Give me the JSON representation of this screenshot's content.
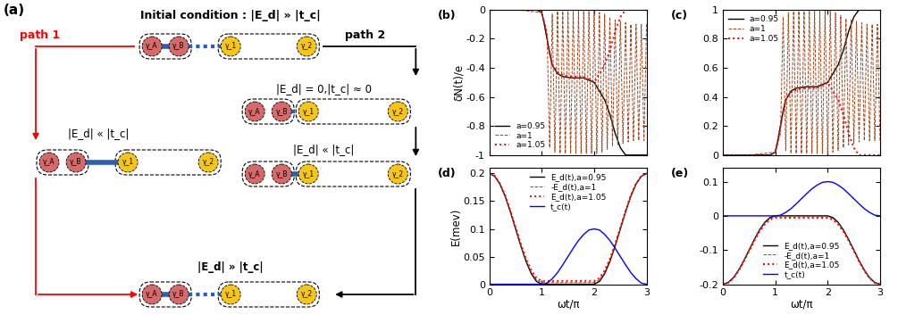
{
  "diagram": {
    "label": "(a)",
    "initial": "Initial condition : |E_d| » |t_c|",
    "path_1": {
      "label": "path 1",
      "steps": [
        "|E_d| « |t_c|"
      ]
    },
    "path_2": {
      "label": "path 2",
      "steps": [
        "|E_d| = 0,|t_c| ≈ 0",
        "|E_d| « |t_c|"
      ]
    },
    "final": "|E_d| » |t_c|",
    "nodes": [
      "γ_A",
      "γ_B",
      "γ_1",
      "γ_2"
    ]
  },
  "chart_data": [
    {
      "type": "line",
      "title": "(b)",
      "ylabel": "δN(t)/e",
      "xlim": [
        0,
        3
      ],
      "xticks": [
        0,
        1,
        2,
        3
      ],
      "ylim": [
        -1,
        0
      ],
      "yticks": [
        -1,
        -0.8,
        -0.6,
        -0.4,
        -0.2,
        0
      ],
      "tick_labels": "y",
      "legend": "lower left",
      "series": [
        {
          "name": "a=0.95",
          "color": "#000000",
          "line_style": "solid",
          "x": [
            0,
            0.5,
            0.9,
            1.0,
            1.05,
            1.1,
            1.15,
            1.2,
            1.3,
            1.4,
            1.6,
            1.8,
            2.0,
            2.2,
            2.3,
            2.4,
            2.5,
            2.6,
            2.8,
            3.0
          ],
          "values": [
            0,
            0,
            0,
            -0.02,
            -0.1,
            -0.2,
            -0.3,
            -0.38,
            -0.44,
            -0.46,
            -0.47,
            -0.47,
            -0.5,
            -0.62,
            -0.72,
            -0.85,
            -0.95,
            -1.0,
            -1.0,
            -1.0
          ]
        },
        {
          "name": "a=1",
          "color": "#a0461e",
          "line_style": "dashed",
          "x": [
            0,
            0.5,
            1.0,
            1.1,
            1.15,
            1.2,
            1.25,
            1.3,
            1.35,
            1.4,
            1.45,
            1.5,
            1.55,
            1.6,
            1.65,
            1.7,
            1.75,
            1.8,
            1.85,
            1.9,
            1.95,
            2.0,
            2.05,
            2.1,
            2.15,
            2.2,
            2.25,
            2.3,
            2.35,
            2.4,
            2.45,
            2.5,
            2.55,
            2.6,
            2.65,
            2.7,
            2.75,
            2.8,
            2.85,
            2.9,
            2.95,
            3.0
          ],
          "values": [
            0,
            0,
            -0.02,
            -0.15,
            -0.95,
            -0.03,
            -0.98,
            -0.01,
            -0.99,
            -0.01,
            -0.99,
            -0.01,
            -0.99,
            -0.01,
            -0.99,
            -0.01,
            -0.99,
            -0.01,
            -0.99,
            -0.01,
            -0.99,
            -0.01,
            -0.99,
            -0.02,
            -0.98,
            -0.03,
            -0.96,
            -0.05,
            -0.94,
            -0.07,
            -0.93,
            -0.08,
            -0.92,
            -0.09,
            -0.91,
            -0.1,
            -0.9,
            -0.1,
            -0.9,
            -0.1,
            -0.9,
            -0.1
          ]
        },
        {
          "name": "a=1.05",
          "color": "#ff0000",
          "line_style": "dotted",
          "x": [
            0,
            0.5,
            0.9,
            1.0,
            1.05,
            1.1,
            1.15,
            1.2,
            1.3,
            1.4,
            1.6,
            1.8,
            2.0,
            2.2,
            2.3,
            2.4,
            2.5,
            2.6,
            2.8,
            3.0
          ],
          "values": [
            0,
            0,
            0,
            -0.02,
            -0.1,
            -0.2,
            -0.3,
            -0.38,
            -0.43,
            -0.45,
            -0.46,
            -0.46,
            -0.5,
            -0.38,
            -0.28,
            -0.15,
            -0.05,
            0,
            0,
            0
          ]
        }
      ]
    },
    {
      "type": "line",
      "title": "(c)",
      "xlim": [
        0,
        3
      ],
      "xticks": [
        0,
        1,
        2,
        3
      ],
      "ylim": [
        0,
        1
      ],
      "yticks": [
        0,
        0.2,
        0.4,
        0.6,
        0.8,
        1
      ],
      "tick_labels": "y",
      "legend": "upper left",
      "series": [
        {
          "name": "a=0.95",
          "color": "#000000",
          "line_style": "solid",
          "x": [
            0,
            0.5,
            0.9,
            1.0,
            1.05,
            1.1,
            1.15,
            1.2,
            1.3,
            1.4,
            1.6,
            1.8,
            2.0,
            2.2,
            2.3,
            2.4,
            2.5,
            2.6,
            2.8,
            3.0
          ],
          "values": [
            0,
            0,
            0,
            0.02,
            0.1,
            0.2,
            0.3,
            0.38,
            0.44,
            0.46,
            0.47,
            0.47,
            0.5,
            0.62,
            0.72,
            0.85,
            0.95,
            1.0,
            1.0,
            1.0
          ]
        },
        {
          "name": "a=1",
          "color": "#a0461e",
          "line_style": "dashed",
          "x": [
            0,
            0.5,
            1.0,
            1.1,
            1.15,
            1.2,
            1.25,
            1.3,
            1.35,
            1.4,
            1.45,
            1.5,
            1.55,
            1.6,
            1.65,
            1.7,
            1.75,
            1.8,
            1.85,
            1.9,
            1.95,
            2.0,
            2.05,
            2.1,
            2.15,
            2.2,
            2.25,
            2.3,
            2.35,
            2.4,
            2.45,
            2.5,
            2.55,
            2.6,
            2.65,
            2.7,
            2.75,
            2.8,
            2.85,
            2.9,
            2.95,
            3.0
          ],
          "values": [
            0,
            0,
            0.02,
            0.15,
            0.95,
            0.03,
            0.98,
            0.01,
            0.99,
            0.01,
            0.99,
            0.01,
            0.99,
            0.01,
            0.99,
            0.01,
            0.99,
            0.01,
            0.99,
            0.01,
            0.99,
            0.01,
            0.99,
            0.02,
            0.98,
            0.03,
            0.96,
            0.05,
            0.94,
            0.07,
            0.93,
            0.08,
            0.92,
            0.09,
            0.91,
            0.1,
            0.9,
            0.1,
            0.9,
            0.1,
            0.9,
            0.1
          ]
        },
        {
          "name": "a=1.05",
          "color": "#ff0000",
          "line_style": "dotted",
          "x": [
            0,
            0.5,
            0.9,
            1.0,
            1.05,
            1.1,
            1.15,
            1.2,
            1.3,
            1.4,
            1.6,
            1.8,
            2.0,
            2.2,
            2.3,
            2.4,
            2.5,
            2.6,
            2.8,
            3.0
          ],
          "values": [
            0,
            0,
            0,
            0.02,
            0.1,
            0.2,
            0.3,
            0.38,
            0.43,
            0.45,
            0.46,
            0.46,
            0.5,
            0.38,
            0.28,
            0.15,
            0.05,
            0,
            0,
            0
          ]
        }
      ]
    },
    {
      "type": "line",
      "title": "(d)",
      "xlabel": "ωt/π",
      "ylabel": "E(mev)",
      "xlim": [
        0,
        3
      ],
      "xticks": [
        0,
        1,
        2,
        3
      ],
      "ylim": [
        0,
        0.21
      ],
      "yticks": [
        0,
        0.05,
        0.1,
        0.15,
        0.2
      ],
      "legend": "upper center",
      "x": [
        0,
        0.1,
        0.2,
        0.3,
        0.4,
        0.5,
        0.6,
        0.7,
        0.8,
        0.9,
        1.0,
        1.1,
        1.2,
        1.3,
        1.4,
        1.5,
        1.6,
        1.7,
        1.8,
        1.9,
        2.0,
        2.1,
        2.2,
        2.3,
        2.4,
        2.5,
        2.6,
        2.7,
        2.8,
        2.9,
        3.0
      ],
      "series": [
        {
          "name": "E_d(t),a=0.95",
          "color": "#000000",
          "line_style": "solid",
          "values": [
            0.2,
            0.195,
            0.181,
            0.159,
            0.131,
            0.1,
            0.069,
            0.041,
            0.019,
            0.005,
            0,
            0,
            0,
            0,
            0,
            0,
            0,
            0,
            0,
            0,
            0,
            0.005,
            0.019,
            0.041,
            0.069,
            0.1,
            0.131,
            0.159,
            0.181,
            0.195,
            0.2
          ]
        },
        {
          "name": "-E_d(t),a=1",
          "color": "#a0461e",
          "line_style": "dashed",
          "values": [
            0.2,
            0.195,
            0.181,
            0.159,
            0.131,
            0.101,
            0.07,
            0.043,
            0.021,
            0.008,
            0.003,
            0.003,
            0.003,
            0.003,
            0.003,
            0.003,
            0.003,
            0.003,
            0.003,
            0.003,
            0.003,
            0.008,
            0.021,
            0.043,
            0.07,
            0.101,
            0.131,
            0.159,
            0.181,
            0.195,
            0.2
          ]
        },
        {
          "name": "E_d(t),a=1.05",
          "color": "#ff0000",
          "line_style": "dotted",
          "values": [
            0.2,
            0.196,
            0.182,
            0.161,
            0.133,
            0.103,
            0.073,
            0.046,
            0.025,
            0.011,
            0.006,
            0.006,
            0.006,
            0.006,
            0.006,
            0.006,
            0.006,
            0.006,
            0.006,
            0.006,
            0.006,
            0.011,
            0.025,
            0.046,
            0.073,
            0.103,
            0.133,
            0.161,
            0.182,
            0.196,
            0.2
          ]
        },
        {
          "name": "t_c(t)",
          "color": "#0000ff",
          "line_style": "solid",
          "values": [
            0,
            0,
            0,
            0,
            0,
            0,
            0,
            0,
            0,
            0,
            0,
            0.002,
            0.01,
            0.021,
            0.035,
            0.05,
            0.065,
            0.079,
            0.09,
            0.098,
            0.1,
            0.098,
            0.09,
            0.079,
            0.065,
            0.05,
            0.035,
            0.021,
            0.01,
            0.002,
            0
          ]
        }
      ]
    },
    {
      "type": "line",
      "title": "(e)",
      "xlabel": "ωt/π",
      "xlim": [
        0,
        3
      ],
      "xticks": [
        0,
        1,
        2,
        3
      ],
      "ylim": [
        -0.2,
        0.14
      ],
      "yticks": [
        -0.2,
        -0.1,
        0,
        0.1
      ],
      "legend": "lower center",
      "x": [
        0,
        0.1,
        0.2,
        0.3,
        0.4,
        0.5,
        0.6,
        0.7,
        0.8,
        0.9,
        1.0,
        1.1,
        1.2,
        1.3,
        1.4,
        1.5,
        1.6,
        1.7,
        1.8,
        1.9,
        2.0,
        2.1,
        2.2,
        2.3,
        2.4,
        2.5,
        2.6,
        2.7,
        2.8,
        2.9,
        3.0
      ],
      "series": [
        {
          "name": "E_d(t),a=0.95",
          "color": "#000000",
          "line_style": "solid",
          "values": [
            -0.2,
            -0.195,
            -0.181,
            -0.159,
            -0.131,
            -0.1,
            -0.069,
            -0.041,
            -0.019,
            -0.005,
            0,
            0,
            0,
            0,
            0,
            0,
            0,
            0,
            0,
            0,
            0,
            -0.005,
            -0.019,
            -0.041,
            -0.069,
            -0.1,
            -0.131,
            -0.159,
            -0.181,
            -0.195,
            -0.2
          ]
        },
        {
          "name": "-E_d(t),a=1",
          "color": "#a0461e",
          "line_style": "dashed",
          "values": [
            -0.2,
            -0.195,
            -0.181,
            -0.159,
            -0.131,
            -0.101,
            -0.07,
            -0.043,
            -0.021,
            -0.008,
            -0.003,
            -0.003,
            -0.003,
            -0.003,
            -0.003,
            -0.003,
            -0.003,
            -0.003,
            -0.003,
            -0.003,
            -0.003,
            -0.008,
            -0.021,
            -0.043,
            -0.07,
            -0.101,
            -0.131,
            -0.159,
            -0.181,
            -0.195,
            -0.2
          ]
        },
        {
          "name": "E_d(t),a=1.05",
          "color": "#ff0000",
          "line_style": "dotted",
          "values": [
            -0.2,
            -0.196,
            -0.182,
            -0.161,
            -0.133,
            -0.103,
            -0.073,
            -0.046,
            -0.025,
            -0.011,
            -0.006,
            -0.006,
            -0.006,
            -0.006,
            -0.006,
            -0.006,
            -0.006,
            -0.006,
            -0.006,
            -0.006,
            -0.006,
            -0.011,
            -0.025,
            -0.046,
            -0.073,
            -0.103,
            -0.133,
            -0.161,
            -0.182,
            -0.196,
            -0.2
          ]
        },
        {
          "name": "t_c(t)",
          "color": "#0000ff",
          "line_style": "solid",
          "values": [
            0,
            0,
            0,
            0,
            0,
            0,
            0,
            0,
            0,
            0,
            0,
            0.002,
            0.01,
            0.021,
            0.035,
            0.05,
            0.065,
            0.079,
            0.09,
            0.098,
            0.1,
            0.098,
            0.09,
            0.079,
            0.065,
            0.05,
            0.035,
            0.021,
            0.01,
            0.002,
            0
          ]
        }
      ]
    }
  ]
}
